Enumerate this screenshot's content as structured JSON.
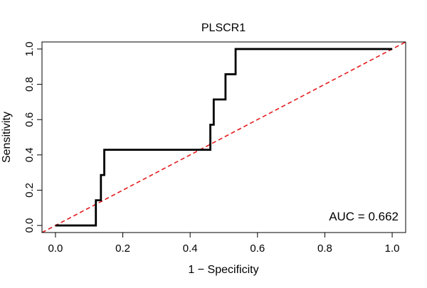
{
  "chart_data": {
    "type": "line",
    "title": "PLSCR1",
    "xlabel": "1 − Specificity",
    "ylabel": "Sensitivity",
    "xlim": [
      -0.04,
      1.04
    ],
    "ylim": [
      -0.04,
      1.04
    ],
    "x_ticks": [
      {
        "value": 0.0,
        "label": "0.0"
      },
      {
        "value": 0.2,
        "label": "0.2"
      },
      {
        "value": 0.4,
        "label": "0.4"
      },
      {
        "value": 0.6,
        "label": "0.6"
      },
      {
        "value": 0.8,
        "label": "0.8"
      },
      {
        "value": 1.0,
        "label": "1.0"
      }
    ],
    "y_ticks": [
      {
        "value": 0.0,
        "label": "0.0"
      },
      {
        "value": 0.2,
        "label": "0.2"
      },
      {
        "value": 0.4,
        "label": "0.4"
      },
      {
        "value": 0.6,
        "label": "0.6"
      },
      {
        "value": 0.8,
        "label": "0.8"
      },
      {
        "value": 1.0,
        "label": "1.0"
      }
    ],
    "grid": false,
    "series": [
      {
        "name": "ROC",
        "color": "#000000",
        "style": "solid",
        "x": [
          0.0,
          0.12,
          0.12,
          0.125,
          0.125,
          0.135,
          0.135,
          0.145,
          0.145,
          0.21,
          0.46,
          0.46,
          0.465,
          0.465,
          0.47,
          0.47,
          0.485,
          0.505,
          0.505,
          0.51,
          0.51,
          0.525,
          0.525,
          0.535,
          0.535,
          0.6,
          1.0
        ],
        "y": [
          0.0,
          0.0,
          0.143,
          0.143,
          0.143,
          0.143,
          0.286,
          0.286,
          0.429,
          0.429,
          0.429,
          0.571,
          0.571,
          0.571,
          0.571,
          0.714,
          0.714,
          0.714,
          0.857,
          0.857,
          0.857,
          0.857,
          0.857,
          0.857,
          1.0,
          1.0,
          1.0
        ]
      },
      {
        "name": "Reference",
        "color": "#e41a1c",
        "style": "dashed",
        "x": [
          -0.04,
          1.04
        ],
        "y": [
          -0.04,
          1.04
        ]
      }
    ],
    "annotations": [
      {
        "text": "AUC = 0.662",
        "position": "bottom-right"
      }
    ]
  }
}
